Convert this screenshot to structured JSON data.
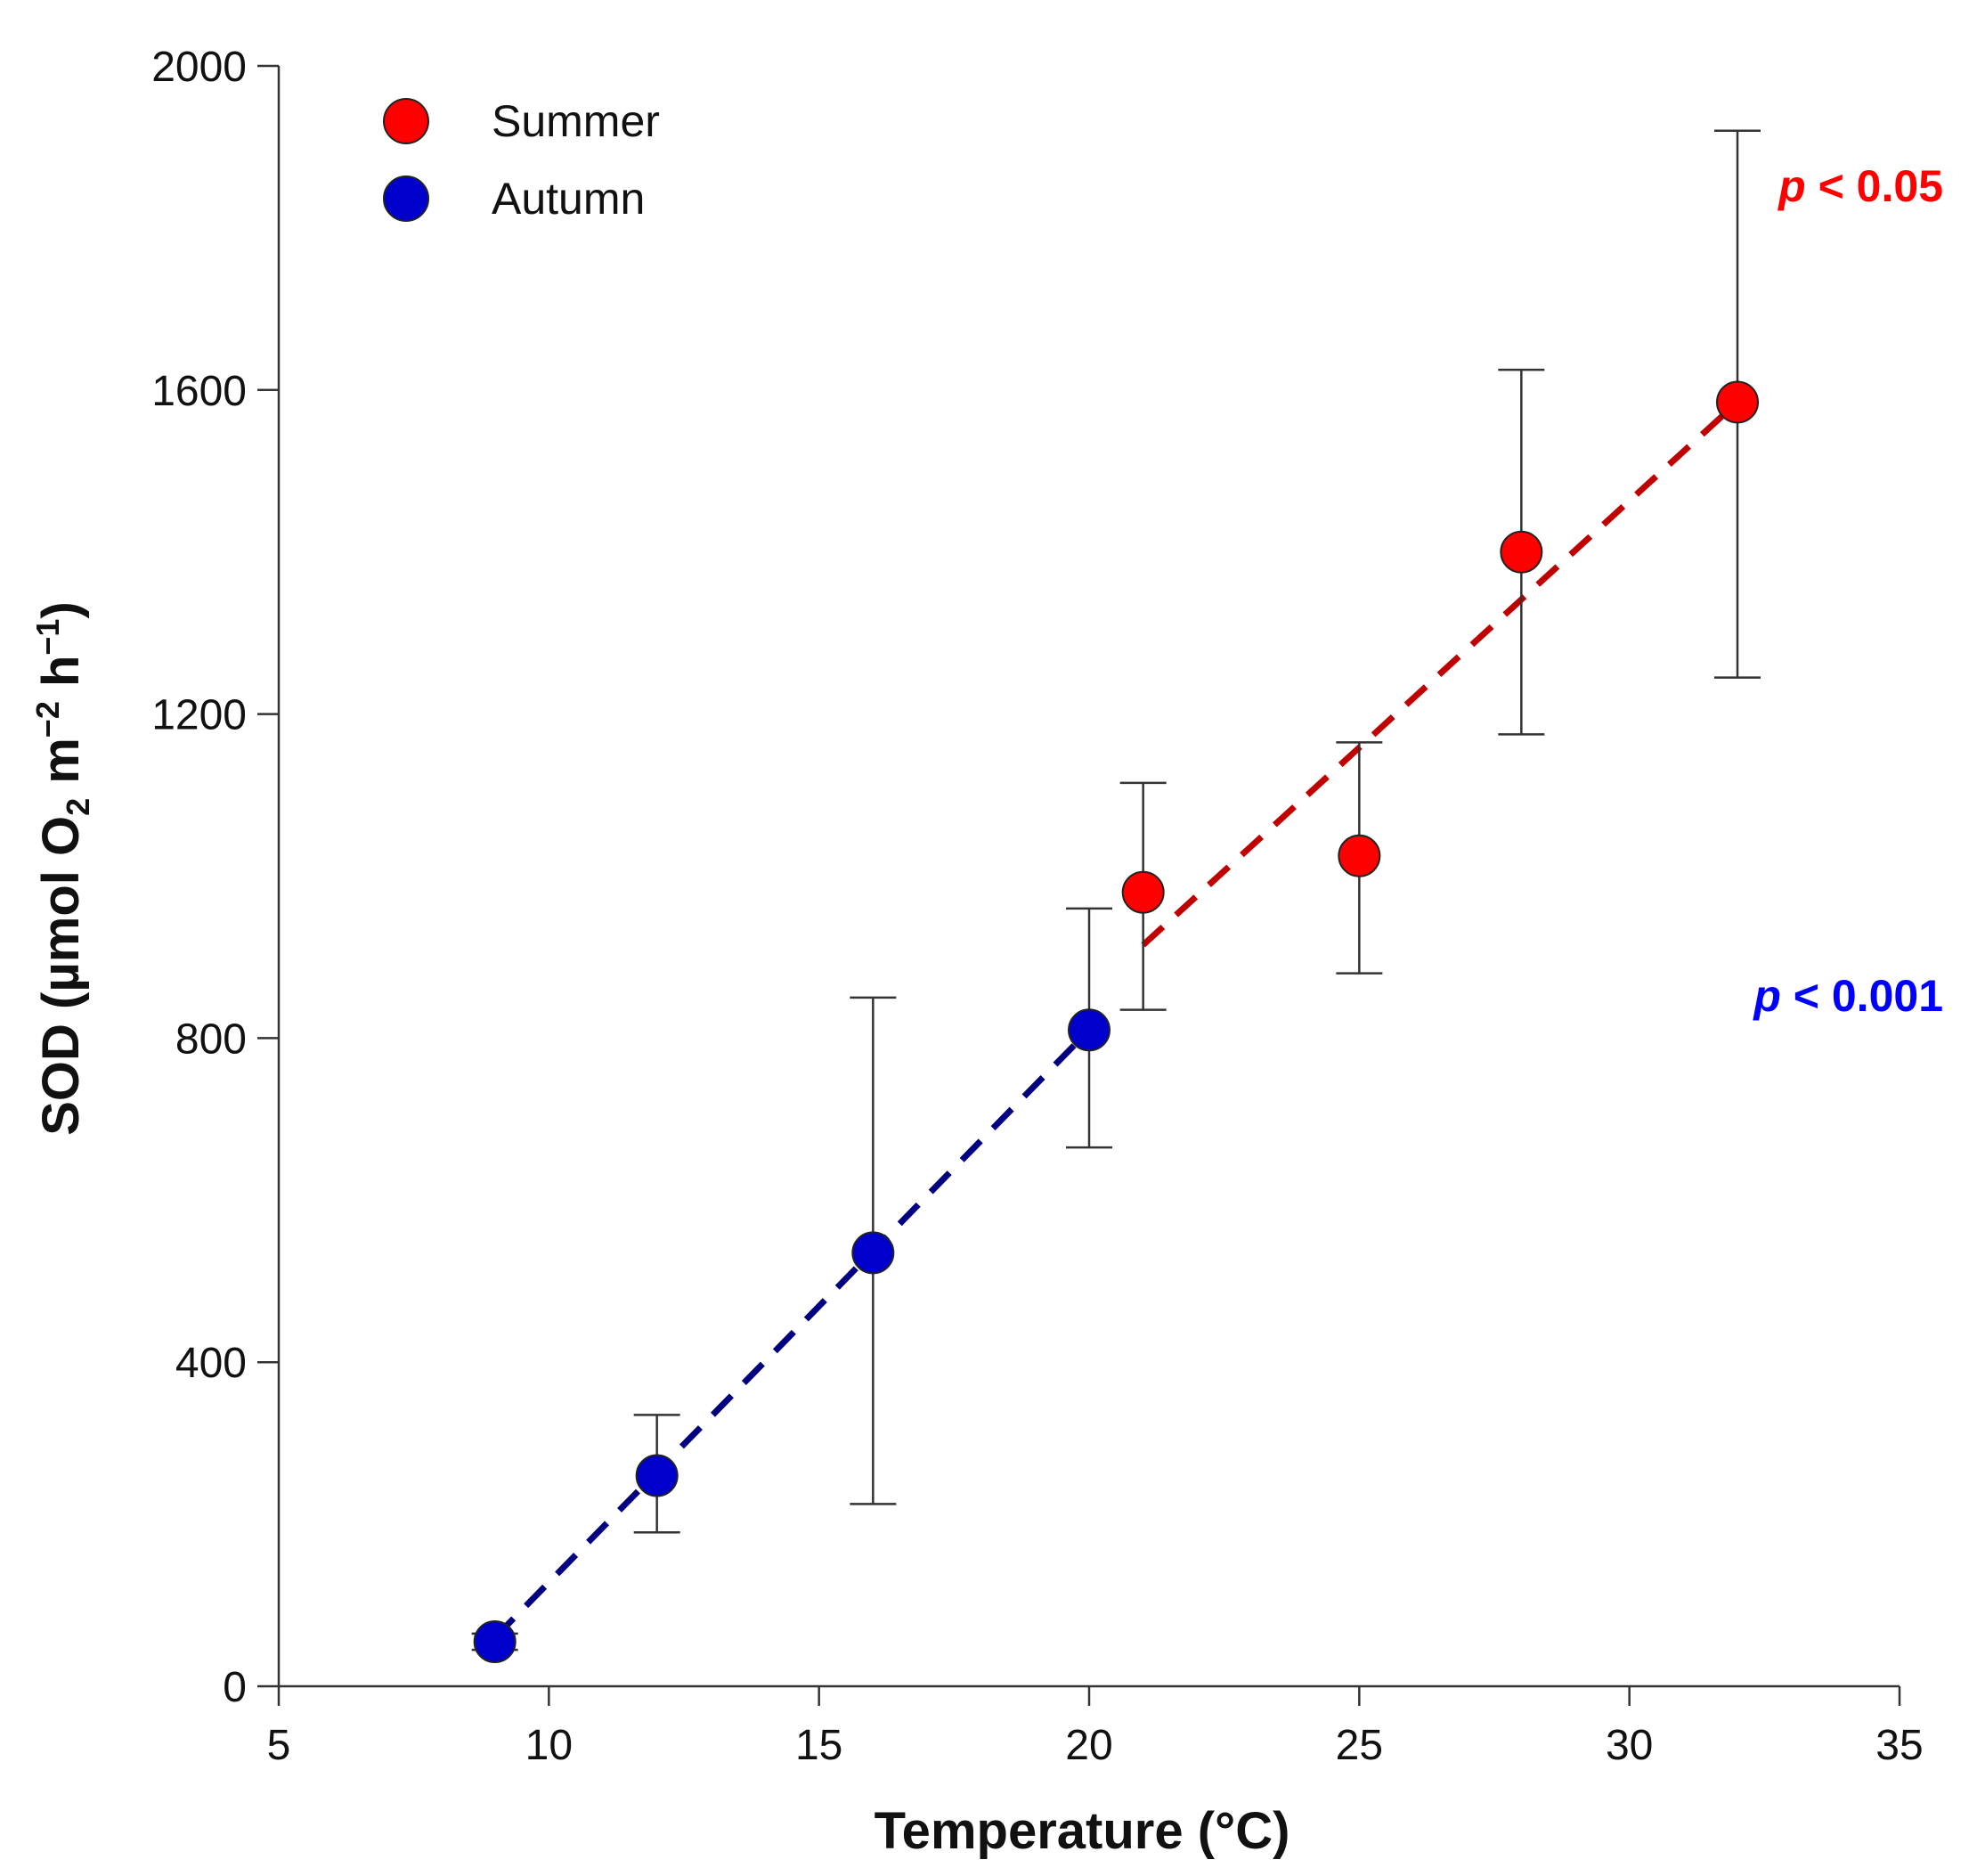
{
  "chart_data": {
    "type": "scatter",
    "xlabel": "Temperature (°C)",
    "ylabel": {
      "prefix": "SOD (µmol O",
      "o2_sub": "2",
      "m": " m",
      "m_sup": "−2",
      "h": " h",
      "h_sup": "−1",
      "suffix": ")"
    },
    "xlim": [
      5,
      35
    ],
    "ylim": [
      0,
      2000
    ],
    "x_ticks": [
      5,
      10,
      15,
      20,
      25,
      30,
      35
    ],
    "y_ticks": [
      0,
      400,
      800,
      1200,
      1600,
      2000
    ],
    "x_tick_labels": [
      "5",
      "10",
      "15",
      "20",
      "25",
      "30",
      "35"
    ],
    "y_tick_labels": [
      "0",
      "400",
      "800",
      "1200",
      "1600",
      "2000"
    ],
    "series": [
      {
        "name": "Summer",
        "color": "#ff0000",
        "line_color": "#c00000",
        "points": [
          {
            "x": 21,
            "y": 980,
            "err_low": 835,
            "err_high": 1115
          },
          {
            "x": 25,
            "y": 1025,
            "err_low": 880,
            "err_high": 1165
          },
          {
            "x": 28,
            "y": 1400,
            "err_low": 1175,
            "err_high": 1625
          },
          {
            "x": 32,
            "y": 1585,
            "err_low": 1245,
            "err_high": 1920
          }
        ],
        "fit": {
          "x": [
            21,
            32
          ],
          "y": [
            915,
            1585
          ]
        },
        "annotation": {
          "var": "p",
          "rest": " < 0.05",
          "color": "#ff0000"
        }
      },
      {
        "name": "Autumn",
        "color": "#0000cc",
        "line_color": "#000080",
        "points": [
          {
            "x": 9,
            "y": 55,
            "err_low": 45,
            "err_high": 65
          },
          {
            "x": 12,
            "y": 260,
            "err_low": 190,
            "err_high": 335
          },
          {
            "x": 16,
            "y": 535,
            "err_low": 225,
            "err_high": 850
          },
          {
            "x": 20,
            "y": 810,
            "err_low": 665,
            "err_high": 960
          }
        ],
        "fit": {
          "x": [
            9,
            20
          ],
          "y": [
            60,
            810
          ]
        },
        "annotation": {
          "var": "p",
          "rest": " < 0.001",
          "color": "#0000ff"
        }
      }
    ],
    "legend": {
      "position": "top-left",
      "entries": [
        "Summer",
        "Autumn"
      ]
    }
  }
}
